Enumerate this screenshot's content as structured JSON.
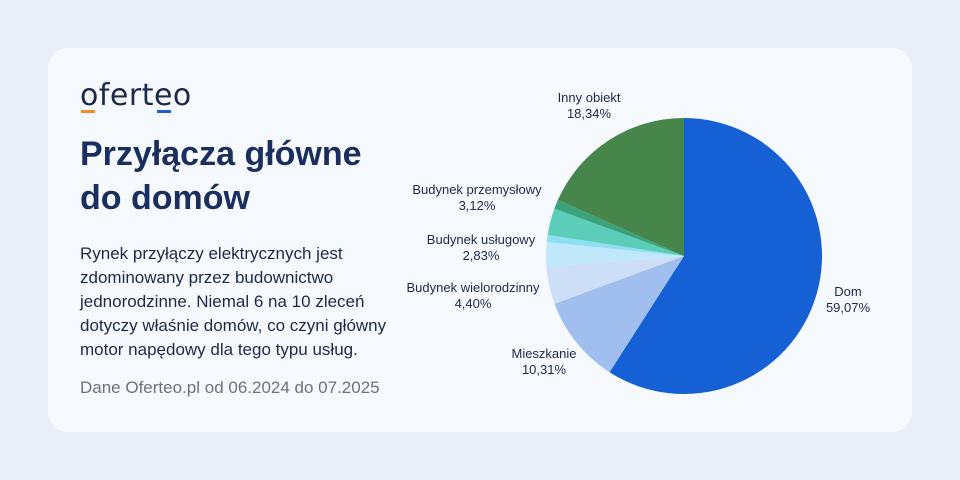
{
  "brand": {
    "logo_text": "oferteo",
    "underline_colors": [
      "#f28c28",
      "#1a5fd6"
    ]
  },
  "heading": {
    "lines": [
      "Przyłącza główne",
      "do domów"
    ]
  },
  "description": {
    "lines": [
      "Rynek przyłączy elektrycznych jest",
      "zdominowany przez budownictwo",
      "jednorodzinne. Niemal 6 na 10 zleceń",
      "dotyczy właśnie domów, co czyni główny",
      "motor napędowy dla tego typu usług."
    ]
  },
  "source": "Dane Oferteo.pl od 06.2024 do 07.2025",
  "chart_data": {
    "type": "pie",
    "title": "",
    "slices": [
      {
        "label": "Dom",
        "value": 59.07,
        "value_label": "59,07%",
        "color": "#1560d4"
      },
      {
        "label": "Mieszkanie",
        "value": 10.31,
        "value_label": "10,31%",
        "color": "#a0bfee"
      },
      {
        "label": "Budynek wielorodzinny",
        "value": 4.4,
        "value_label": "4,40%",
        "color": "#cddff7"
      },
      {
        "label": "Budynek usługowy",
        "value": 2.83,
        "value_label": "2,83%",
        "color": "#bfe9fb"
      },
      {
        "label": "",
        "value": 0.84,
        "value_label": "",
        "color": "#8fdff2"
      },
      {
        "label": "Budynek przemysłowy",
        "value": 3.12,
        "value_label": "3,12%",
        "color": "#5ccdb8"
      },
      {
        "label": "",
        "value": 1.09,
        "value_label": "",
        "color": "#3aa37c"
      },
      {
        "label": "Inny obiekt",
        "value": 18.34,
        "value_label": "18,34%",
        "color": "#47864a"
      }
    ]
  }
}
